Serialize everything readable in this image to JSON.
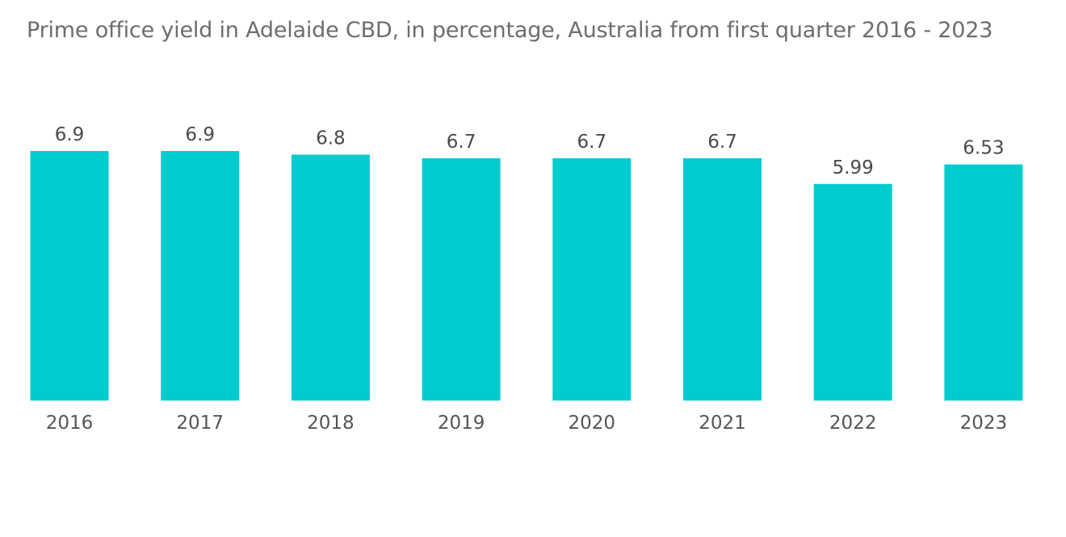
{
  "title": "Prime office yield in Adelaide CBD, in percentage, Australia from first quarter 2016 - 2023",
  "colors": {
    "bar": "#00ccd0",
    "title": "#6d6d6d",
    "labels": "#4a4a4a"
  },
  "chart_data": {
    "type": "bar",
    "title": "Prime office yield in Adelaide CBD, in percentage, Australia from first quarter 2016 - 2023",
    "xlabel": "",
    "ylabel": "",
    "categories": [
      "2016",
      "2017",
      "2018",
      "2019",
      "2020",
      "2021",
      "2022",
      "2023"
    ],
    "values": [
      6.9,
      6.9,
      6.8,
      6.7,
      6.7,
      6.7,
      5.99,
      6.53
    ],
    "value_labels": [
      "6.9",
      "6.9",
      "6.8",
      "6.7",
      "6.7",
      "6.7",
      "5.99",
      "6.53"
    ],
    "ylim": [
      0,
      6.9
    ],
    "grid": false,
    "legend": "none"
  }
}
